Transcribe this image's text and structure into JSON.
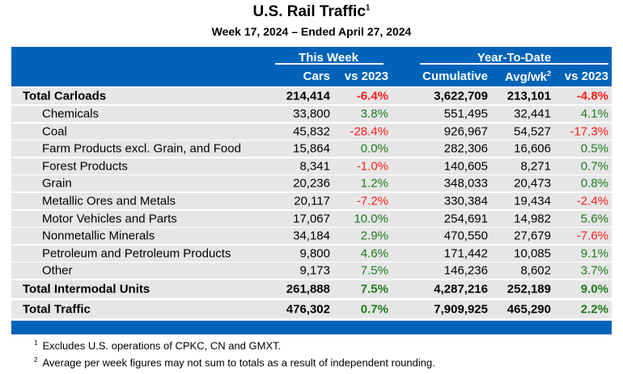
{
  "title": "U.S. Rail Traffic",
  "title_sup": "1",
  "subtitle": "Week 17, 2024 – Ended April 27, 2024",
  "header": {
    "this_week": "This Week",
    "ytd": "Year-To-Date",
    "cars": "Cars",
    "vs2023": "vs 2023",
    "cumulative": "Cumulative",
    "avg": "Avg/wk",
    "avg_sup": "2",
    "vs2023_ytd": "vs 2023"
  },
  "colors": {
    "header_bg": "#0063b9",
    "row_bg": "#e6e6e6",
    "positive": "#1e7a1e",
    "negative": "#ff1a1a"
  },
  "rows": [
    {
      "label": "Total Carloads",
      "cars": "214,414",
      "wk_vs": "-6.4%",
      "cum": "3,622,709",
      "avg": "213,101",
      "ytd_vs": "-4.8%",
      "type": "first"
    },
    {
      "label": "Chemicals",
      "cars": "33,800",
      "wk_vs": "3.8%",
      "cum": "551,495",
      "avg": "32,441",
      "ytd_vs": "4.1%",
      "type": "sub"
    },
    {
      "label": "Coal",
      "cars": "45,832",
      "wk_vs": "-28.4%",
      "cum": "926,967",
      "avg": "54,527",
      "ytd_vs": "-17.3%",
      "type": "sub"
    },
    {
      "label": "Farm Products excl. Grain, and Food",
      "cars": "15,864",
      "wk_vs": "0.0%",
      "cum": "282,306",
      "avg": "16,606",
      "ytd_vs": "0.5%",
      "type": "sub"
    },
    {
      "label": "Forest Products",
      "cars": "8,341",
      "wk_vs": "-1.0%",
      "cum": "140,605",
      "avg": "8,271",
      "ytd_vs": "0.7%",
      "type": "sub"
    },
    {
      "label": "Grain",
      "cars": "20,236",
      "wk_vs": "1.2%",
      "cum": "348,033",
      "avg": "20,473",
      "ytd_vs": "0.8%",
      "type": "sub"
    },
    {
      "label": "Metallic Ores and Metals",
      "cars": "20,117",
      "wk_vs": "-7.2%",
      "cum": "330,384",
      "avg": "19,434",
      "ytd_vs": "-2.4%",
      "type": "sub"
    },
    {
      "label": "Motor Vehicles and Parts",
      "cars": "17,067",
      "wk_vs": "10.0%",
      "cum": "254,691",
      "avg": "14,982",
      "ytd_vs": "5.6%",
      "type": "sub"
    },
    {
      "label": "Nonmetallic Minerals",
      "cars": "34,184",
      "wk_vs": "2.9%",
      "cum": "470,550",
      "avg": "27,679",
      "ytd_vs": "-7.6%",
      "type": "sub"
    },
    {
      "label": "Petroleum and Petroleum Products",
      "cars": "9,800",
      "wk_vs": "4.6%",
      "cum": "171,442",
      "avg": "10,085",
      "ytd_vs": "9.1%",
      "type": "sub"
    },
    {
      "label": "Other",
      "cars": "9,173",
      "wk_vs": "7.5%",
      "cum": "146,236",
      "avg": "8,602",
      "ytd_vs": "3.7%",
      "type": "sub"
    },
    {
      "label": "Total Intermodal Units",
      "cars": "261,888",
      "wk_vs": "7.5%",
      "cum": "4,287,216",
      "avg": "252,189",
      "ytd_vs": "9.0%",
      "type": "total"
    },
    {
      "label": "Total Traffic",
      "cars": "476,302",
      "wk_vs": "0.7%",
      "cum": "7,909,925",
      "avg": "465,290",
      "ytd_vs": "2.2%",
      "type": "total"
    }
  ],
  "footnotes": [
    {
      "mark": "1",
      "text": "Excludes U.S. operations of CPKC, CN and GMXT."
    },
    {
      "mark": "2",
      "text": "Average per week figures may not sum to totals as a result of independent rounding."
    }
  ]
}
